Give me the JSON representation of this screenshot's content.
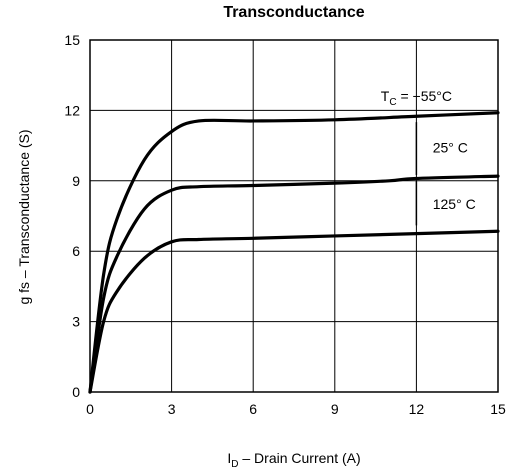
{
  "chart_data": {
    "type": "line",
    "title": "Transconductance",
    "xlabel_symbol": "I",
    "xlabel_subscript": "D",
    "xlabel_text": " –  Drain Current (A)",
    "ylabel": "g fs – Transconductance (S)",
    "xlim": [
      0,
      15
    ],
    "ylim": [
      0,
      15
    ],
    "xticks": [
      "0",
      "3",
      "6",
      "9",
      "12",
      "15"
    ],
    "yticks": [
      "0",
      "3",
      "6",
      "9",
      "12",
      "15"
    ],
    "grid": true,
    "series": [
      {
        "name": "TC = −55°C",
        "label_main": "T",
        "label_sub": "C",
        "label_rest": " = −55°C",
        "x": [
          0,
          0.5,
          1,
          2,
          3,
          4,
          6,
          9,
          12,
          15
        ],
        "y": [
          0,
          5,
          7.4,
          9.9,
          11.1,
          11.55,
          11.55,
          11.6,
          11.75,
          11.9
        ]
      },
      {
        "name": "25°C",
        "label_main": "25° C",
        "x": [
          0,
          0.5,
          1,
          2,
          3,
          4,
          6,
          9,
          11,
          12,
          15
        ],
        "y": [
          0,
          4,
          5.8,
          7.8,
          8.6,
          8.75,
          8.8,
          8.9,
          9.0,
          9.1,
          9.2
        ]
      },
      {
        "name": "125°C",
        "label_main": "125° C",
        "x": [
          0,
          0.5,
          1,
          2,
          3,
          4,
          6,
          9,
          12,
          15
        ],
        "y": [
          0,
          3,
          4.3,
          5.7,
          6.4,
          6.5,
          6.55,
          6.65,
          6.75,
          6.85
        ]
      }
    ]
  }
}
